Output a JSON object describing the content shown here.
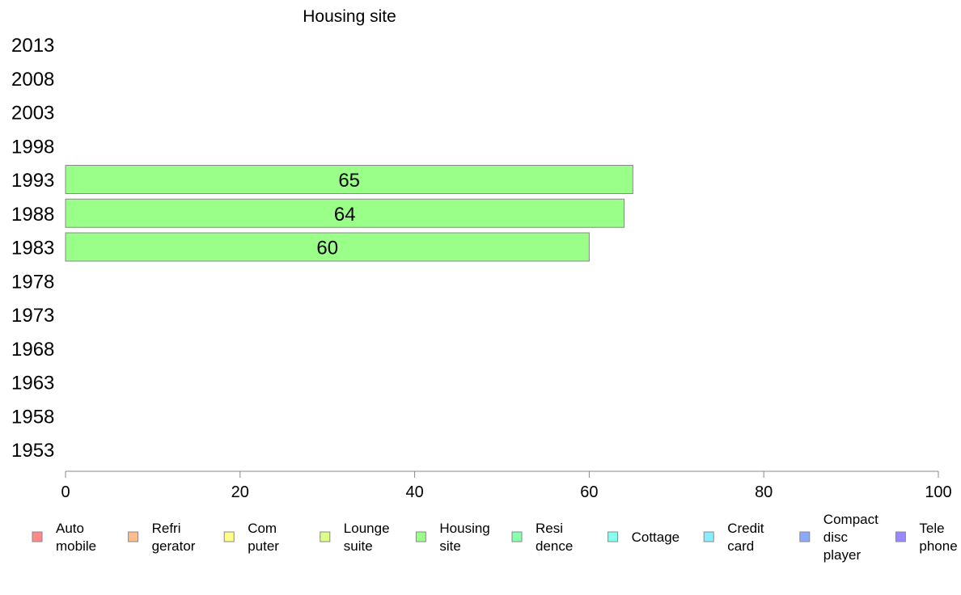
{
  "chart_data": {
    "type": "bar",
    "orientation": "horizontal",
    "title": "Housing site",
    "categories": [
      "1953",
      "1958",
      "1963",
      "1968",
      "1973",
      "1978",
      "1983",
      "1988",
      "1993",
      "1998",
      "2003",
      "2008",
      "2013"
    ],
    "series": [
      {
        "name": "Housing site",
        "values": [
          null,
          null,
          null,
          null,
          null,
          null,
          60,
          64,
          65,
          null,
          null,
          null,
          null
        ],
        "labels": [
          "",
          "",
          "",
          "",
          "",
          "",
          "60",
          "64",
          "65",
          "",
          "",
          "",
          ""
        ],
        "color": "#99ff88"
      }
    ],
    "xlim": [
      0,
      100
    ],
    "xticks": [
      "0",
      "20",
      "40",
      "60",
      "80",
      "100"
    ],
    "grid": false,
    "legend_position": "bottom",
    "legend": [
      {
        "lines": [
          "Auto",
          "mobile"
        ],
        "color": "#ff8888"
      },
      {
        "lines": [
          "Refri",
          "gerator"
        ],
        "color": "#ffbb88"
      },
      {
        "lines": [
          "Com",
          "puter"
        ],
        "color": "#ffff88"
      },
      {
        "lines": [
          "Lounge",
          "suite"
        ],
        "color": "#ddff88"
      },
      {
        "lines": [
          "Housing",
          "site"
        ],
        "color": "#99ff88"
      },
      {
        "lines": [
          "Resi",
          "dence"
        ],
        "color": "#88ffaa"
      },
      {
        "lines": [
          "Cottage"
        ],
        "color": "#88ffee"
      },
      {
        "lines": [
          "Credit",
          "card"
        ],
        "color": "#88eeff"
      },
      {
        "lines": [
          "Compact",
          "disc",
          "player"
        ],
        "color": "#88aaff"
      },
      {
        "lines": [
          "Tele",
          "phone"
        ],
        "color": "#9988ff"
      }
    ]
  }
}
